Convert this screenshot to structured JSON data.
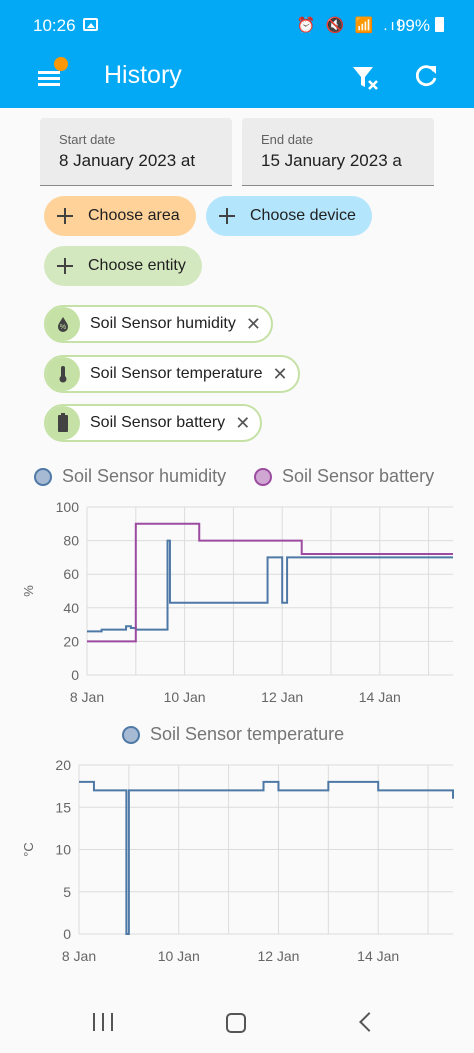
{
  "status": {
    "time": "10:26",
    "battery": "99%",
    "icons": "⏰ 🔇 📶 .ıl"
  },
  "appbar": {
    "title": "History"
  },
  "start_date": {
    "label": "Start date",
    "value": "8 January 2023 at"
  },
  "end_date": {
    "label": "End date",
    "value": "15 January 2023 a"
  },
  "targets": {
    "area": "Choose area",
    "device": "Choose device",
    "entity": "Choose entity"
  },
  "entities": [
    {
      "name": "Soil Sensor humidity",
      "icon": "water-percent-icon"
    },
    {
      "name": "Soil Sensor temperature",
      "icon": "thermometer-icon"
    },
    {
      "name": "Soil Sensor battery",
      "icon": "battery-icon"
    }
  ],
  "colors": {
    "blue": "#4e79a7",
    "purple": "#9c4ba0",
    "chip_orange": "#ffd29a",
    "chip_blue": "#b3e5fc",
    "chip_green": "#d4e8c0"
  },
  "chart_data": [
    {
      "type": "line",
      "legend": [
        "Soil Sensor humidity",
        "Soil Sensor battery"
      ],
      "ylabel": "%",
      "ylim": [
        0,
        100
      ],
      "yticks": [
        "100",
        "80",
        "60",
        "40",
        "20",
        "0"
      ],
      "xticks": [
        "8 Jan",
        "10 Jan",
        "12 Jan",
        "14 Jan"
      ],
      "series": [
        {
          "name": "Soil Sensor humidity",
          "x": [
            8.0,
            8.3,
            8.8,
            8.9,
            9.0,
            9.6,
            9.65,
            9.7,
            9.8,
            11.0,
            11.6,
            11.7,
            12.0,
            12.1,
            15.5
          ],
          "y": [
            26,
            27,
            29,
            28,
            27,
            27,
            80,
            43,
            43,
            43,
            43,
            70,
            43,
            70,
            70
          ]
        },
        {
          "name": "Soil Sensor battery",
          "x": [
            8.0,
            9.0,
            9.0,
            9.8,
            10.3,
            12.0,
            12.4
          ],
          "y": [
            20,
            20,
            90,
            90,
            80,
            80,
            72
          ]
        }
      ]
    },
    {
      "type": "line",
      "legend": [
        "Soil Sensor temperature"
      ],
      "ylabel": "°C",
      "ylim": [
        0,
        20
      ],
      "yticks": [
        "20",
        "15",
        "10",
        "5",
        "0"
      ],
      "xticks": [
        "8 Jan",
        "10 Jan",
        "12 Jan",
        "14 Jan"
      ],
      "series": [
        {
          "name": "Soil Sensor temperature",
          "x": [
            8.0,
            8.3,
            8.9,
            8.95,
            9.0,
            9.5,
            11.0,
            11.7,
            12.0,
            13.0,
            14.0,
            15.0,
            15.5
          ],
          "y": [
            18,
            17,
            17,
            0,
            17,
            17,
            17,
            18,
            17,
            18,
            17,
            17,
            16
          ]
        }
      ]
    }
  ],
  "nav": {
    "recent": "recent-apps",
    "home": "home",
    "back": "back"
  }
}
